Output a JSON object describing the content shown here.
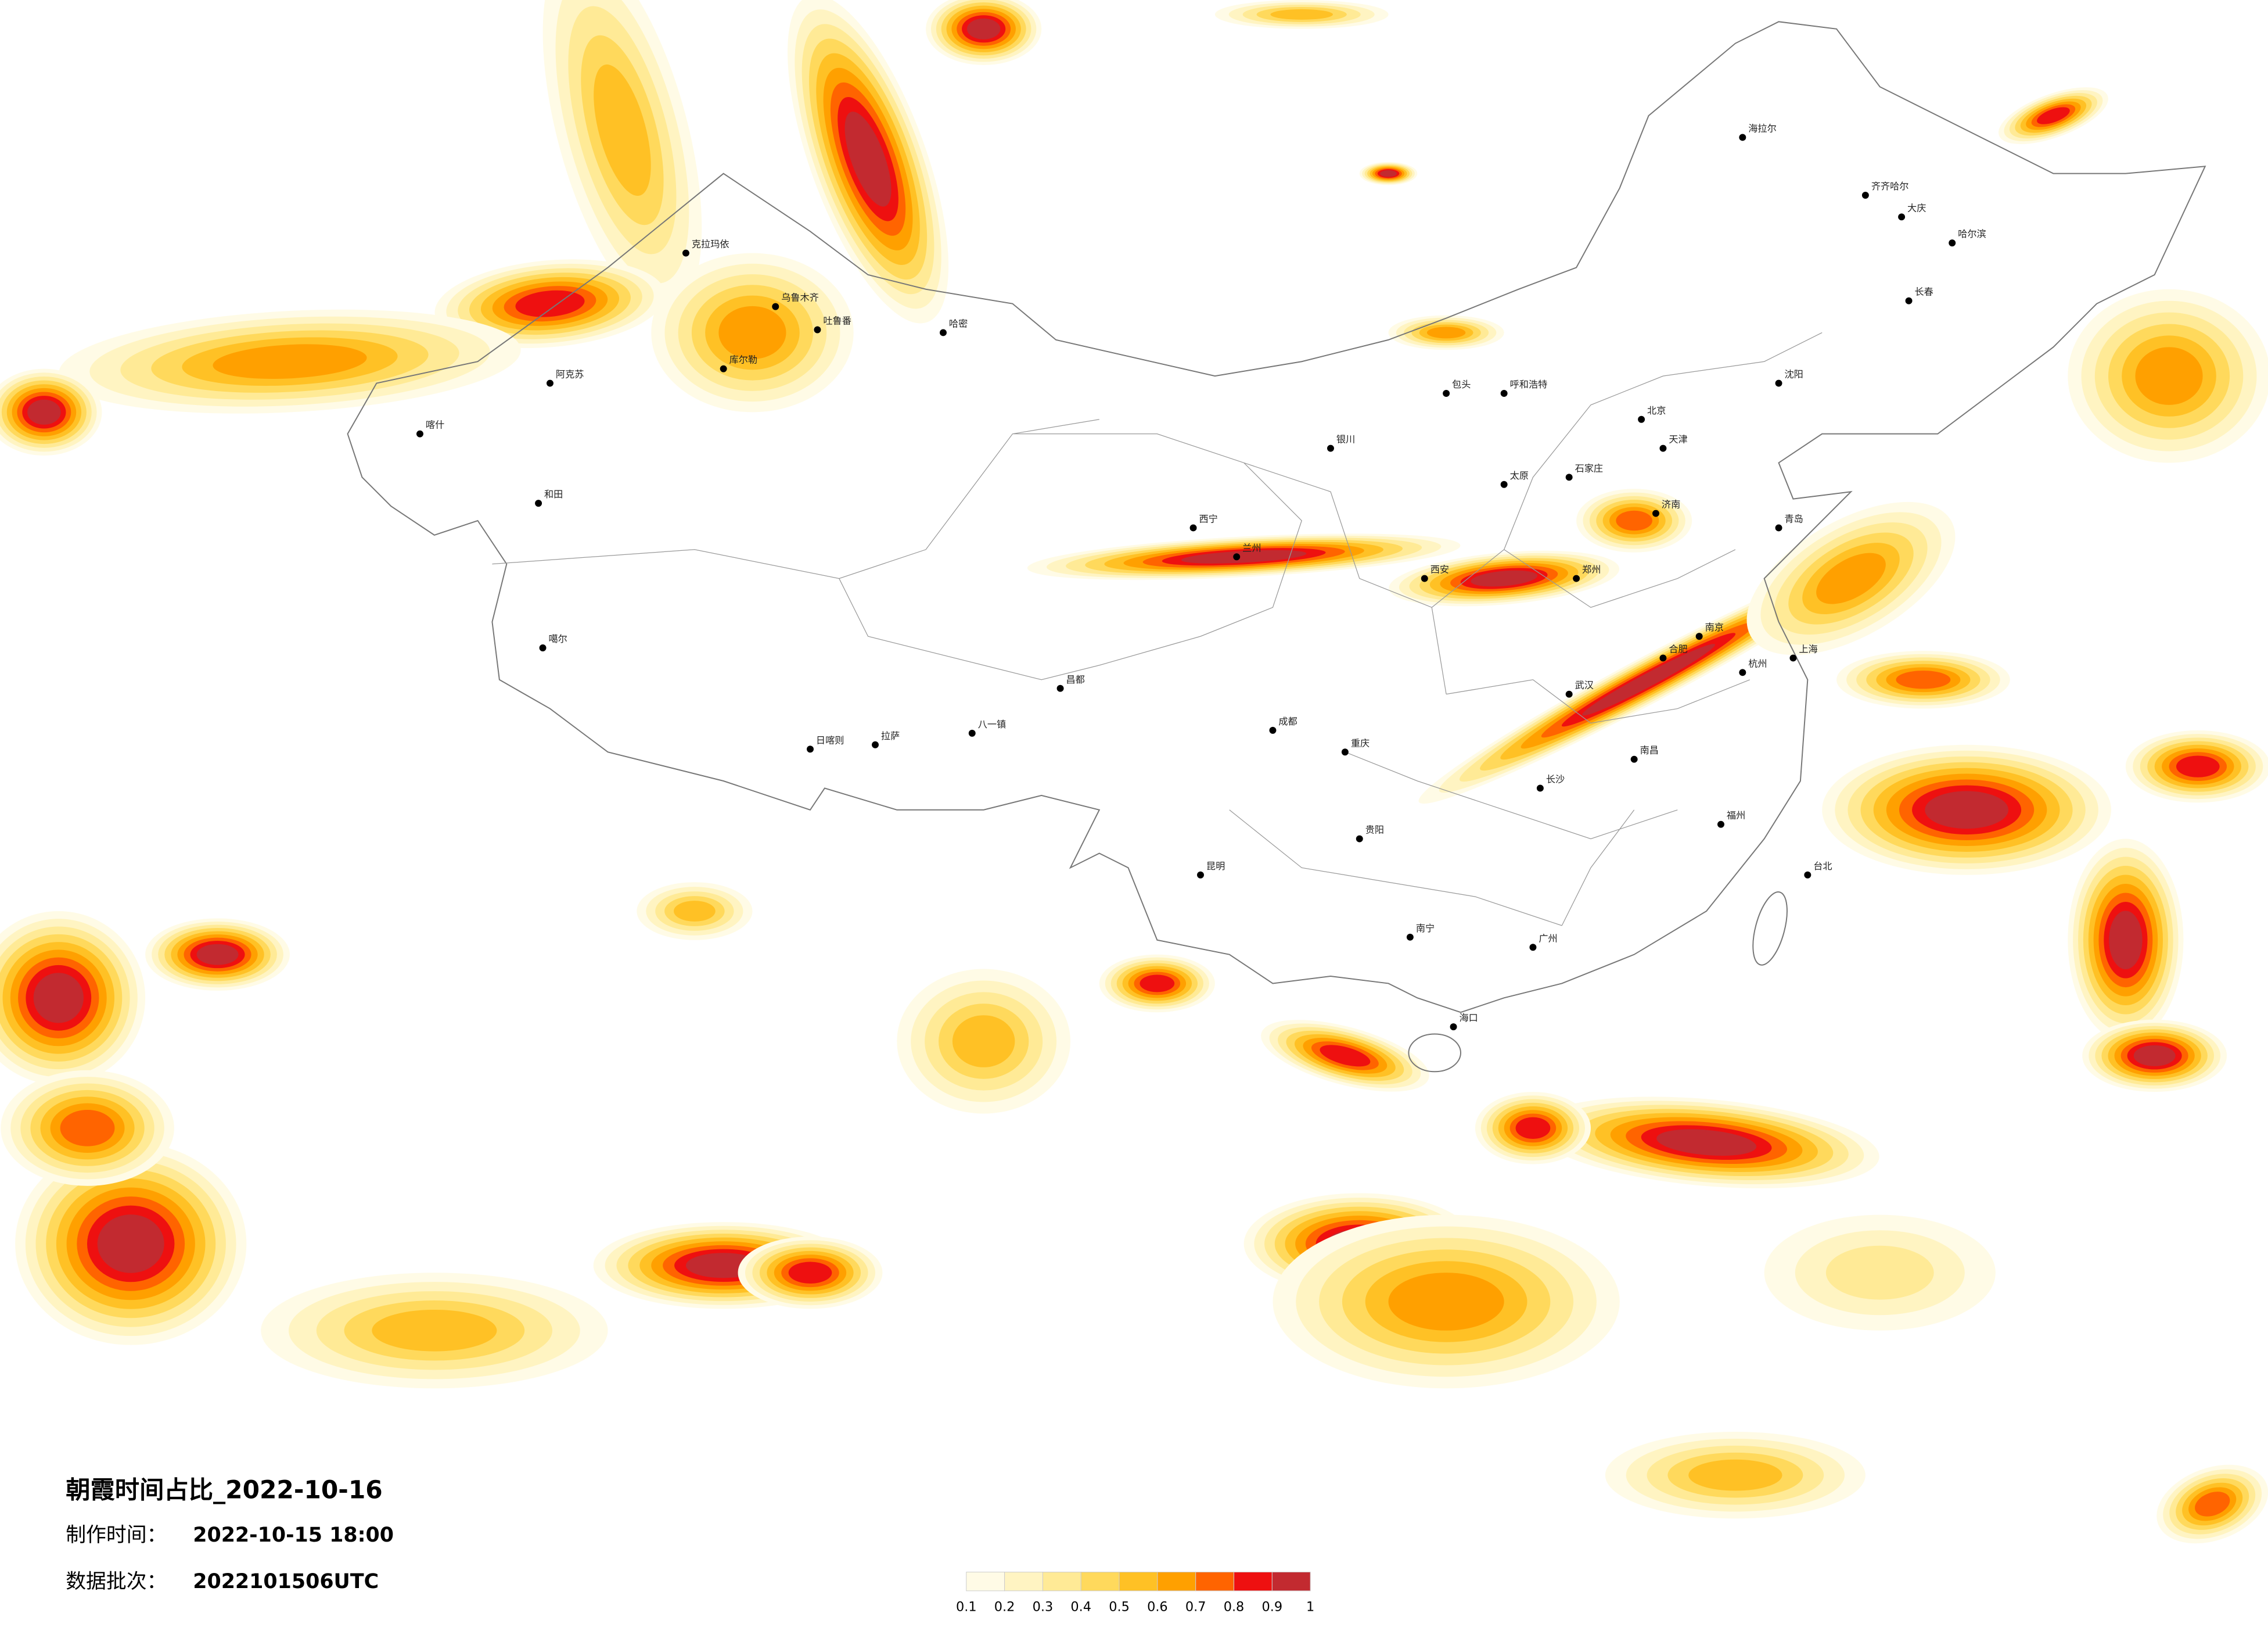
{
  "map": {
    "title": "朝霞时间占比_2022-10-16",
    "made_time_label": "制作时间：",
    "made_time": "2022-10-15 18:00",
    "batch_label": "数据批次：",
    "batch": "2022101506UTC",
    "colorbar": {
      "ticks": [
        0.1,
        0.2,
        0.3,
        0.4,
        0.5,
        0.6,
        0.7,
        0.8,
        0.9,
        1
      ],
      "colors": [
        "#fffbe6",
        "#fff4c2",
        "#ffea96",
        "#ffd95c",
        "#ffc125",
        "#ffa000",
        "#ff6400",
        "#ee1010",
        "#c22a30"
      ]
    },
    "cities": [
      "克拉玛依",
      "乌鲁木齐",
      "吐鲁番",
      "哈密",
      "库尔勒",
      "阿克苏",
      "喀什",
      "和田",
      "噶尔",
      "日喀则",
      "拉萨",
      "八一镇",
      "昌都",
      "西宁",
      "兰州",
      "银川",
      "呼和浩特",
      "包头",
      "太原",
      "石家庄",
      "北京",
      "天津",
      "沈阳",
      "长春",
      "哈尔滨",
      "齐齐哈尔",
      "大庆",
      "海拉尔",
      "济南",
      "青岛",
      "郑州",
      "西安",
      "成都",
      "重庆",
      "贵阳",
      "昆明",
      "南宁",
      "海口",
      "广州",
      "福州",
      "台北",
      "杭州",
      "上海",
      "南京",
      "武汉",
      "长沙",
      "南昌",
      "合肥"
    ]
  }
}
